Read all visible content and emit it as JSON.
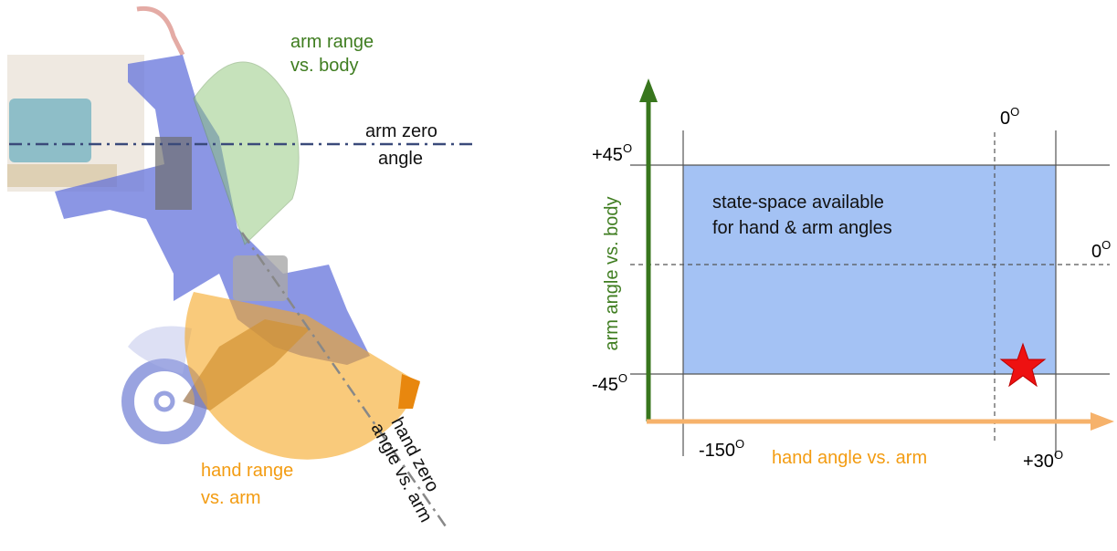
{
  "left": {
    "arm_range_label": [
      "arm range",
      "vs. body"
    ],
    "arm_zero_label": [
      "arm zero",
      "angle"
    ],
    "hand_range_label": [
      "hand range",
      "vs. arm"
    ],
    "hand_zero_label": [
      "hand zero",
      "angle vs. arm"
    ]
  },
  "right": {
    "y_axis_title": "arm angle vs. body",
    "x_axis_title": "hand angle vs. arm",
    "region_label": [
      "state-space available",
      "for hand & arm angles"
    ],
    "ticks": [
      {
        "text": "+45",
        "sup": "O"
      },
      {
        "text": "-45",
        "sup": "O"
      },
      {
        "text": "0",
        "sup": "O"
      },
      {
        "text": "0",
        "sup": "O"
      },
      {
        "text": "-150",
        "sup": "O"
      },
      {
        "text": "+30",
        "sup": "O"
      }
    ]
  }
}
